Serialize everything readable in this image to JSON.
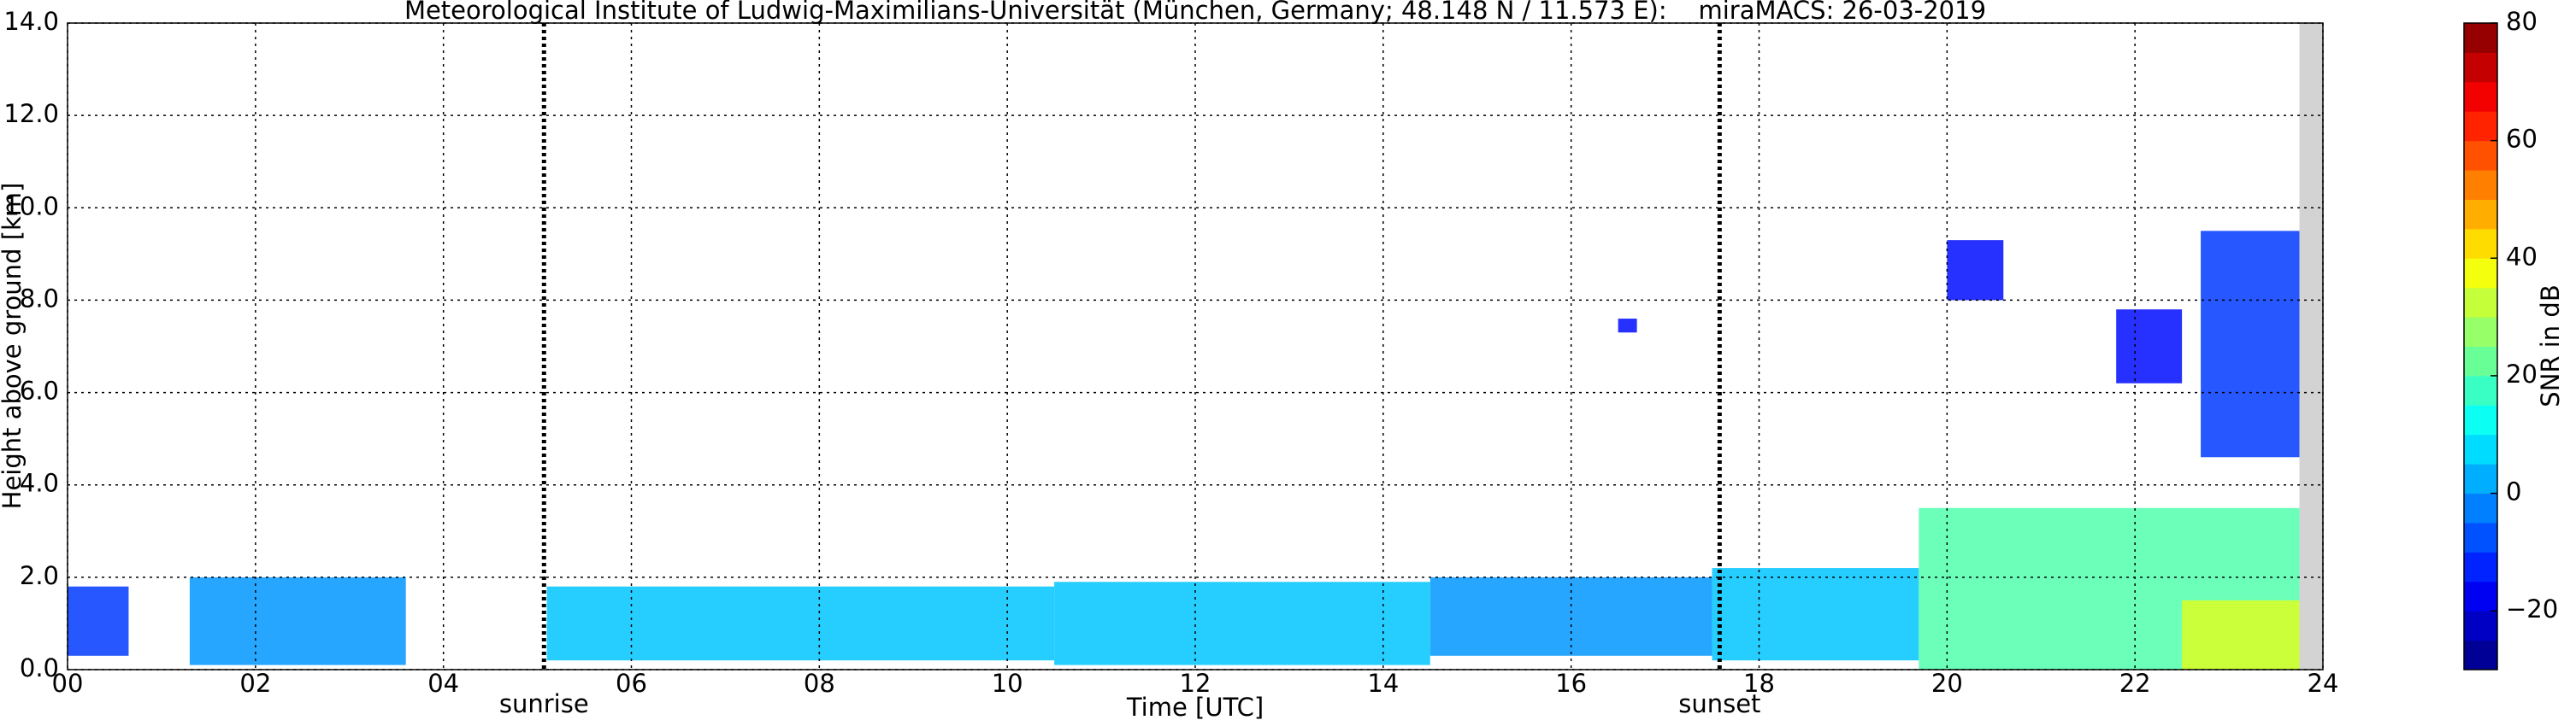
{
  "chart_data": {
    "type": "time-height",
    "title": "Meteorological Institute of Ludwig-Maximilians-Universität (München, Germany; 48.148 N / 11.573 E):    miraMACS: 26-03-2019",
    "xlabel": "Time [UTC]",
    "ylabel": "Height above ground [km]",
    "colorbar_label": "SNR in dB",
    "xlim": [
      0,
      24
    ],
    "xticks": [
      {
        "value": 0,
        "label": "00"
      },
      {
        "value": 2,
        "label": "02"
      },
      {
        "value": 4,
        "label": "04"
      },
      {
        "value": 6,
        "label": "06"
      },
      {
        "value": 8,
        "label": "08"
      },
      {
        "value": 10,
        "label": "10"
      },
      {
        "value": 12,
        "label": "12"
      },
      {
        "value": 14,
        "label": "14"
      },
      {
        "value": 16,
        "label": "16"
      },
      {
        "value": 18,
        "label": "18"
      },
      {
        "value": 20,
        "label": "20"
      },
      {
        "value": 22,
        "label": "22"
      },
      {
        "value": 24,
        "label": "24"
      }
    ],
    "ylim": [
      0,
      14
    ],
    "yticks": [
      {
        "value": 0,
        "label": "0.0"
      },
      {
        "value": 2,
        "label": "2.0"
      },
      {
        "value": 4,
        "label": "4.0"
      },
      {
        "value": 6,
        "label": "6.0"
      },
      {
        "value": 8,
        "label": "8.0"
      },
      {
        "value": 10,
        "label": "10.0"
      },
      {
        "value": 12,
        "label": "12.0"
      },
      {
        "value": 14,
        "label": "14.0"
      }
    ],
    "clim": [
      -30,
      80
    ],
    "cticks": [
      {
        "value": -20,
        "label": "−20"
      },
      0,
      20,
      40,
      60,
      80
    ],
    "grid": true,
    "markers": [
      {
        "time": 5.07,
        "label": "sunrise"
      },
      {
        "time": 17.58,
        "label": "sunset"
      }
    ],
    "no_data": [
      23.75,
      24
    ],
    "echoes": [
      {
        "t": [
          0.0,
          0.65
        ],
        "h": [
          0.3,
          1.8
        ],
        "snr": -10
      },
      {
        "t": [
          1.3,
          3.6
        ],
        "h": [
          0.1,
          2.0
        ],
        "snr": 0
      },
      {
        "t": [
          5.1,
          10.5
        ],
        "h": [
          0.2,
          1.8
        ],
        "snr": 5
      },
      {
        "t": [
          10.5,
          14.5
        ],
        "h": [
          0.1,
          1.9
        ],
        "snr": 5
      },
      {
        "t": [
          14.5,
          17.5
        ],
        "h": [
          0.3,
          2.0
        ],
        "snr": 0
      },
      {
        "t": [
          17.5,
          19.7
        ],
        "h": [
          0.2,
          2.2
        ],
        "snr": 5
      },
      {
        "t": [
          19.7,
          23.75
        ],
        "h": [
          0.0,
          3.5
        ],
        "snr": 20
      },
      {
        "t": [
          22.5,
          23.75
        ],
        "h": [
          0.0,
          1.5
        ],
        "snr": 35
      },
      {
        "t": [
          20.0,
          20.6
        ],
        "h": [
          8.0,
          9.3
        ],
        "snr": -15
      },
      {
        "t": [
          21.8,
          22.5
        ],
        "h": [
          6.2,
          7.8
        ],
        "snr": -15
      },
      {
        "t": [
          22.7,
          23.75
        ],
        "h": [
          4.6,
          9.5
        ],
        "snr": -10
      },
      {
        "t": [
          16.5,
          16.7
        ],
        "h": [
          7.3,
          7.6
        ],
        "snr": -15
      }
    ]
  }
}
